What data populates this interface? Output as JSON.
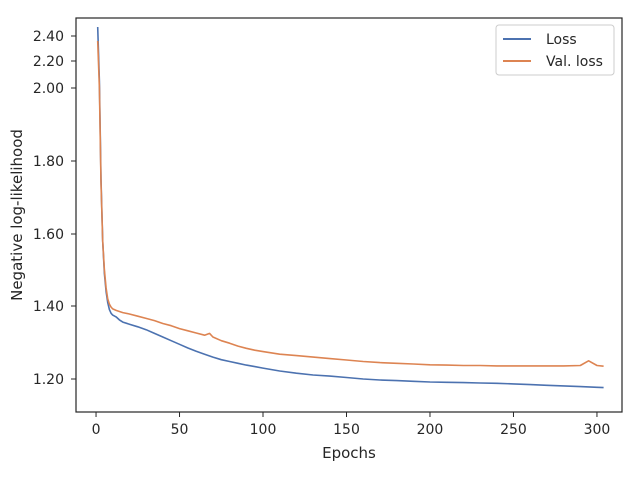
{
  "chart_data": {
    "type": "line",
    "title": "",
    "xlabel": "Epochs",
    "ylabel": "Negative log-likelihood",
    "xlim": [
      -12,
      315
    ],
    "ylim": [
      1.1,
      2.5
    ],
    "y_scale": "nonlinear (compressed above ~2.0)",
    "xticks": [
      0,
      50,
      100,
      150,
      200,
      250,
      300
    ],
    "xtick_labels": [
      "0",
      "50",
      "100",
      "150",
      "200",
      "250",
      "300"
    ],
    "yticks": [
      1.2,
      1.4,
      1.6,
      1.8,
      2.0,
      2.2,
      2.4
    ],
    "ytick_labels": [
      "1.20",
      "1.40",
      "1.60",
      "1.80",
      "2.00",
      "2.20",
      "2.40"
    ],
    "grid": false,
    "legend_position": "top-right",
    "colors": {
      "loss": "#4c72b0",
      "val_loss": "#dd8452"
    },
    "series": [
      {
        "name": "Loss",
        "x": [
          1,
          2,
          3,
          4,
          5,
          6,
          7,
          8,
          9,
          10,
          12,
          14,
          16,
          20,
          25,
          30,
          35,
          40,
          45,
          50,
          55,
          60,
          65,
          70,
          75,
          80,
          85,
          90,
          95,
          100,
          110,
          120,
          130,
          140,
          150,
          160,
          170,
          180,
          190,
          200,
          210,
          220,
          230,
          240,
          250,
          260,
          270,
          280,
          290,
          300,
          304
        ],
        "y": [
          2.45,
          2.05,
          1.75,
          1.58,
          1.49,
          1.44,
          1.41,
          1.39,
          1.38,
          1.375,
          1.37,
          1.362,
          1.356,
          1.35,
          1.343,
          1.335,
          1.325,
          1.315,
          1.305,
          1.295,
          1.285,
          1.276,
          1.268,
          1.26,
          1.253,
          1.248,
          1.243,
          1.238,
          1.234,
          1.23,
          1.222,
          1.216,
          1.211,
          1.208,
          1.204,
          1.2,
          1.197,
          1.195,
          1.193,
          1.191,
          1.19,
          1.189,
          1.188,
          1.187,
          1.185,
          1.183,
          1.181,
          1.179,
          1.177,
          1.175,
          1.174
        ]
      },
      {
        "name": "Val. loss",
        "x": [
          1,
          2,
          3,
          4,
          5,
          6,
          7,
          8,
          9,
          10,
          12,
          14,
          16,
          20,
          25,
          30,
          35,
          40,
          45,
          50,
          55,
          60,
          65,
          68,
          70,
          75,
          80,
          85,
          90,
          95,
          100,
          110,
          120,
          130,
          140,
          150,
          160,
          170,
          180,
          190,
          200,
          210,
          220,
          230,
          240,
          250,
          260,
          270,
          280,
          290,
          295,
          300,
          304
        ],
        "y": [
          2.36,
          2.0,
          1.74,
          1.58,
          1.5,
          1.45,
          1.42,
          1.405,
          1.397,
          1.392,
          1.388,
          1.385,
          1.382,
          1.378,
          1.372,
          1.366,
          1.36,
          1.352,
          1.346,
          1.338,
          1.332,
          1.326,
          1.32,
          1.325,
          1.315,
          1.305,
          1.298,
          1.29,
          1.284,
          1.279,
          1.275,
          1.268,
          1.264,
          1.26,
          1.256,
          1.252,
          1.248,
          1.245,
          1.243,
          1.241,
          1.239,
          1.238,
          1.237,
          1.237,
          1.236,
          1.236,
          1.236,
          1.236,
          1.236,
          1.237,
          1.25,
          1.237,
          1.235
        ]
      }
    ]
  }
}
